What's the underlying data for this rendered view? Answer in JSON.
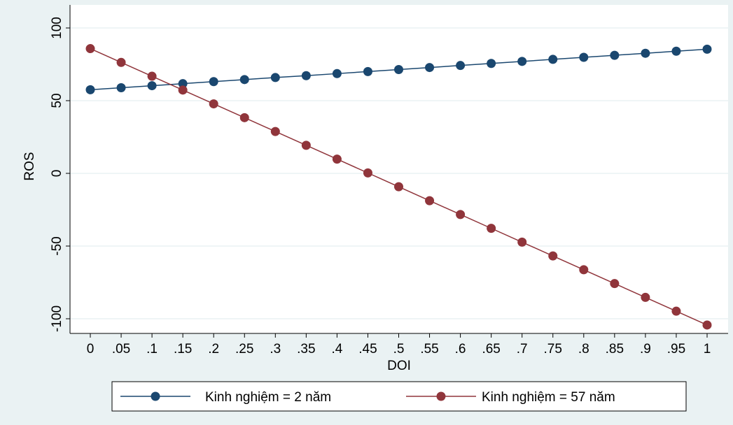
{
  "chart_data": {
    "type": "line",
    "title": "",
    "xlabel": "DOI",
    "ylabel": "ROS",
    "x": [
      0,
      0.05,
      0.1,
      0.15,
      0.2,
      0.25,
      0.3,
      0.35,
      0.4,
      0.45,
      0.5,
      0.55,
      0.6,
      0.65,
      0.7,
      0.75,
      0.8,
      0.85,
      0.9,
      0.95,
      1
    ],
    "xticks": [
      "0",
      ".05",
      ".1",
      ".15",
      ".2",
      ".25",
      ".3",
      ".35",
      ".4",
      ".45",
      ".5",
      ".55",
      ".6",
      ".65",
      ".7",
      ".75",
      ".8",
      ".85",
      ".9",
      ".95",
      "1"
    ],
    "yticks": [
      "100",
      "50",
      "0",
      "-50",
      "-100"
    ],
    "ytick_values": [
      100,
      50,
      0,
      -50,
      -100
    ],
    "ylim": [
      -105,
      100
    ],
    "xlim": [
      0,
      1
    ],
    "grid": true,
    "legend_position": "bottom",
    "series": [
      {
        "name": "Kinh nghiệm = 2 năm",
        "color": "#1a476f",
        "values": [
          57.5,
          58.9,
          60.3,
          61.7,
          63.1,
          64.5,
          65.9,
          67.2,
          68.6,
          70.0,
          71.4,
          72.8,
          74.2,
          75.6,
          77.0,
          78.4,
          79.8,
          81.2,
          82.6,
          84.0,
          85.4
        ]
      },
      {
        "name": "Kinh nghiệm = 57 năm",
        "color": "#90353b",
        "values": [
          85.8,
          76.3,
          66.8,
          57.3,
          47.8,
          38.3,
          28.8,
          19.3,
          9.8,
          0.3,
          -9.2,
          -18.8,
          -28.3,
          -37.8,
          -47.3,
          -56.8,
          -66.3,
          -75.8,
          -85.3,
          -94.8,
          -104.3
        ]
      }
    ]
  }
}
